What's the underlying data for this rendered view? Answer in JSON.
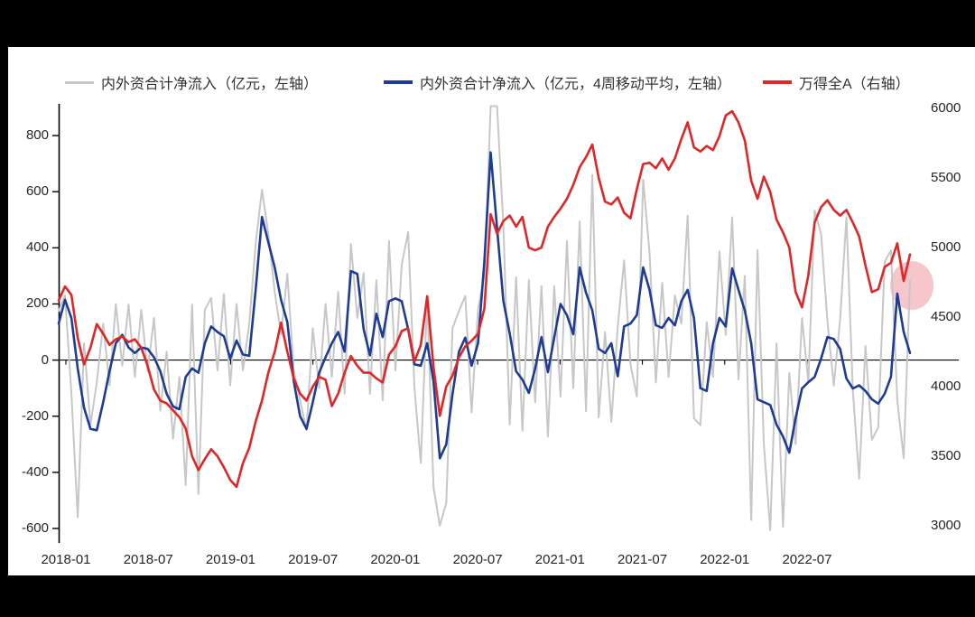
{
  "frame": {
    "background": "#000000",
    "panel": "#ffffff"
  },
  "legend": [
    {
      "label": "内外资合计净流入（亿元，左轴）",
      "color": "#c7c7c7"
    },
    {
      "label": "内外资合计净流入（亿元，4周移动平均，左轴）",
      "color": "#1e3c96"
    },
    {
      "label": "万得全A（右轴）",
      "color": "#e02626"
    }
  ],
  "left_axis": {
    "tick_labels": [
      "800",
      "600",
      "400",
      "200",
      "0",
      "-200",
      "-400",
      "-600"
    ],
    "tick_values": [
      800,
      600,
      400,
      200,
      0,
      -200,
      -400,
      -600
    ]
  },
  "right_axis": {
    "tick_labels": [
      "6000",
      "5500",
      "5000",
      "4500",
      "4000",
      "3500",
      "3000"
    ],
    "tick_values": [
      6000,
      5500,
      5000,
      4500,
      4000,
      3500,
      3000
    ]
  },
  "x_axis": {
    "tick_labels": [
      "2018-01",
      "2018-07",
      "2019-01",
      "2019-07",
      "2020-01",
      "2020-07",
      "2021-01",
      "2021-07",
      "2022-01",
      "2022-07"
    ]
  },
  "annotations": {
    "highlight_circle_color": "#f6c6cb"
  },
  "chart_data": {
    "type": "line",
    "title": "",
    "x_start": "2018-01",
    "x_step_weeks": 2,
    "x_end": "2023-02",
    "grid": false,
    "legend_position": "top",
    "left_ylim": [
      -600,
      800
    ],
    "right_ylim": [
      3000,
      6000
    ],
    "series": [
      {
        "name": "内外资合计净流入（亿元，左轴）",
        "axis": "left",
        "color": "#c7c7c7",
        "values": [
          175,
          230,
          -120,
          -560,
          60,
          -230,
          -80,
          130,
          -90,
          200,
          -20,
          198,
          -60,
          179,
          -40,
          150,
          -180,
          30,
          -280,
          -60,
          -445,
          198,
          -477,
          180,
          221,
          -37,
          235,
          -90,
          200,
          -37,
          130,
          414,
          607,
          450,
          243,
          92,
          307,
          -37,
          -143,
          -250,
          114,
          -100,
          200,
          -60,
          243,
          -120,
          414,
          150,
          310,
          -120,
          285,
          -143,
          424,
          -37,
          340,
          456,
          -100,
          -367,
          222,
          -453,
          -590,
          -510,
          114,
          175,
          229,
          -186,
          180,
          300,
          905,
          905,
          478,
          -230,
          295,
          -252,
          285,
          -150,
          263,
          -272,
          263,
          -130,
          424,
          -100,
          494,
          -182,
          660,
          -204,
          100,
          -220,
          120,
          355,
          -15,
          -130,
          643,
          382,
          -80,
          275,
          -60,
          230,
          130,
          515,
          -207,
          -232,
          135,
          -60,
          387,
          90,
          509,
          -69,
          300,
          -570,
          392,
          -300,
          -606,
          60,
          -594,
          -46,
          -300,
          150,
          -80,
          533,
          450,
          140,
          -91,
          146,
          510,
          -110,
          -423,
          50,
          -284,
          -240,
          350,
          391,
          -143,
          -350,
          285
        ]
      },
      {
        "name": "内外资合计净流入（亿元，4周移动平均，左轴）",
        "axis": "left",
        "color": "#1e3c96",
        "values": [
          130,
          215,
          150,
          -30,
          -170,
          -245,
          -250,
          -150,
          -40,
          60,
          90,
          45,
          25,
          45,
          40,
          10,
          -40,
          -120,
          -165,
          -175,
          -60,
          -30,
          -45,
          60,
          120,
          100,
          85,
          5,
          70,
          20,
          15,
          250,
          510,
          420,
          330,
          215,
          135,
          -75,
          -200,
          -245,
          -150,
          -45,
          10,
          60,
          100,
          30,
          317,
          307,
          110,
          17,
          165,
          82,
          210,
          220,
          210,
          110,
          -15,
          -20,
          60,
          -76,
          -350,
          -300,
          -120,
          30,
          80,
          -20,
          60,
          350,
          740,
          470,
          210,
          95,
          -40,
          -70,
          -117,
          -30,
          82,
          -43,
          80,
          200,
          160,
          92,
          330,
          240,
          177,
          40,
          25,
          60,
          -58,
          120,
          130,
          160,
          330,
          250,
          124,
          115,
          150,
          124,
          210,
          250,
          150,
          -100,
          -110,
          60,
          150,
          120,
          327,
          250,
          177,
          60,
          -140,
          -150,
          -160,
          -230,
          -272,
          -330,
          -207,
          -101,
          -79,
          -60,
          5,
          82,
          75,
          40,
          -66,
          -101,
          -90,
          -110,
          -140,
          -155,
          -120,
          -60,
          237,
          100,
          25
        ]
      },
      {
        "name": "万得全A（右轴）",
        "axis": "right",
        "color": "#e02626",
        "values": [
          4620,
          4720,
          4660,
          4350,
          4160,
          4280,
          4450,
          4380,
          4300,
          4340,
          4360,
          4320,
          4340,
          4280,
          4150,
          3980,
          3900,
          3880,
          3830,
          3780,
          3700,
          3500,
          3400,
          3480,
          3550,
          3500,
          3420,
          3330,
          3280,
          3450,
          3560,
          3750,
          3900,
          4100,
          4250,
          4460,
          4250,
          4060,
          3950,
          3900,
          4000,
          4070,
          4050,
          3860,
          3950,
          4100,
          4220,
          4150,
          4100,
          4100,
          4060,
          4030,
          4230,
          4290,
          4400,
          4420,
          4180,
          4300,
          4650,
          4140,
          3790,
          4000,
          4080,
          4210,
          4290,
          4330,
          4380,
          4560,
          5240,
          5100,
          5190,
          5230,
          5150,
          5220,
          5000,
          4980,
          5000,
          5150,
          5220,
          5280,
          5350,
          5450,
          5577,
          5650,
          5740,
          5500,
          5330,
          5310,
          5360,
          5250,
          5210,
          5420,
          5600,
          5610,
          5570,
          5640,
          5560,
          5640,
          5780,
          5900,
          5720,
          5690,
          5730,
          5700,
          5800,
          5950,
          5980,
          5900,
          5770,
          5480,
          5350,
          5510,
          5400,
          5200,
          5110,
          5000,
          4680,
          4570,
          4800,
          5180,
          5290,
          5340,
          5270,
          5230,
          5270,
          5180,
          5080,
          4870,
          4680,
          4700,
          4860,
          4890,
          5030,
          4760,
          4950
        ]
      }
    ]
  }
}
